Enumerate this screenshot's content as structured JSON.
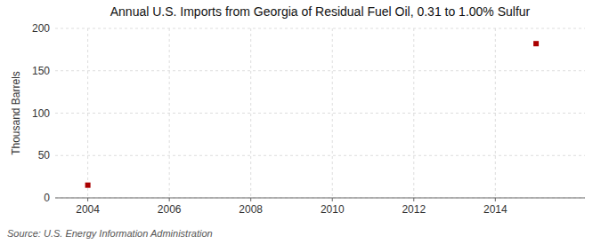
{
  "chart_data": {
    "type": "scatter",
    "title": "Annual U.S. Imports from Georgia of Residual Fuel Oil, 0.31 to 1.00% Sulfur",
    "ylabel": "Thousand Barrels",
    "annotation": "Source: U.S. Energy Information Administration",
    "x": [
      2004,
      2015
    ],
    "values": [
      15,
      182
    ],
    "color": "#aa0000",
    "marker": "square",
    "xlim": [
      2003.2,
      2016.2
    ],
    "ylim": [
      0,
      200
    ],
    "xticks": [
      2004,
      2006,
      2008,
      2010,
      2012,
      2014
    ],
    "yticks": [
      0,
      50,
      100,
      150,
      200
    ],
    "grid": true
  }
}
